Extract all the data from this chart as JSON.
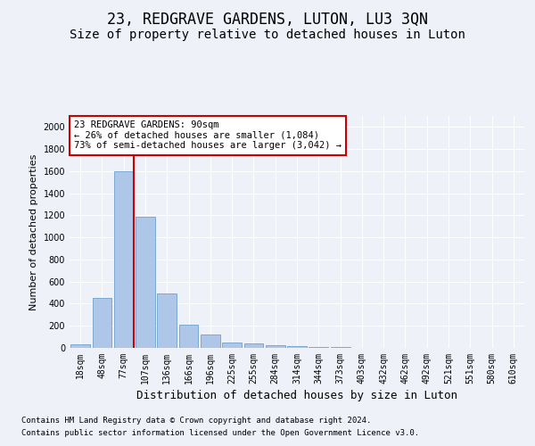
{
  "title": "23, REDGRAVE GARDENS, LUTON, LU3 3QN",
  "subtitle": "Size of property relative to detached houses in Luton",
  "xlabel": "Distribution of detached houses by size in Luton",
  "ylabel": "Number of detached properties",
  "footnote1": "Contains HM Land Registry data © Crown copyright and database right 2024.",
  "footnote2": "Contains public sector information licensed under the Open Government Licence v3.0.",
  "bar_labels": [
    "18sqm",
    "48sqm",
    "77sqm",
    "107sqm",
    "136sqm",
    "166sqm",
    "196sqm",
    "225sqm",
    "255sqm",
    "284sqm",
    "314sqm",
    "344sqm",
    "373sqm",
    "403sqm",
    "432sqm",
    "462sqm",
    "492sqm",
    "521sqm",
    "551sqm",
    "580sqm",
    "610sqm"
  ],
  "bar_values": [
    35,
    455,
    1600,
    1190,
    490,
    210,
    125,
    50,
    40,
    25,
    20,
    10,
    5,
    3,
    2,
    1,
    1,
    0,
    0,
    0,
    0
  ],
  "bar_color": "#aec6e8",
  "bar_edge_color": "#5a96c8",
  "highlight_bar_index": 2,
  "highlight_color": "#cc0000",
  "annotation_line1": "23 REDGRAVE GARDENS: 90sqm",
  "annotation_line2": "← 26% of detached houses are smaller (1,084)",
  "annotation_line3": "73% of semi-detached houses are larger (3,042) →",
  "annotation_box_color": "#ffffff",
  "annotation_box_edge": "#cc0000",
  "ylim": [
    0,
    2100
  ],
  "yticks": [
    0,
    200,
    400,
    600,
    800,
    1000,
    1200,
    1400,
    1600,
    1800,
    2000
  ],
  "bg_color": "#eef2f8",
  "plot_bg": "#eef2f8",
  "grid_color": "#ffffff",
  "title_fontsize": 12,
  "subtitle_fontsize": 10,
  "xlabel_fontsize": 9,
  "ylabel_fontsize": 8,
  "tick_fontsize": 7,
  "annotation_fontsize": 7.5,
  "footnote_fontsize": 6.5
}
